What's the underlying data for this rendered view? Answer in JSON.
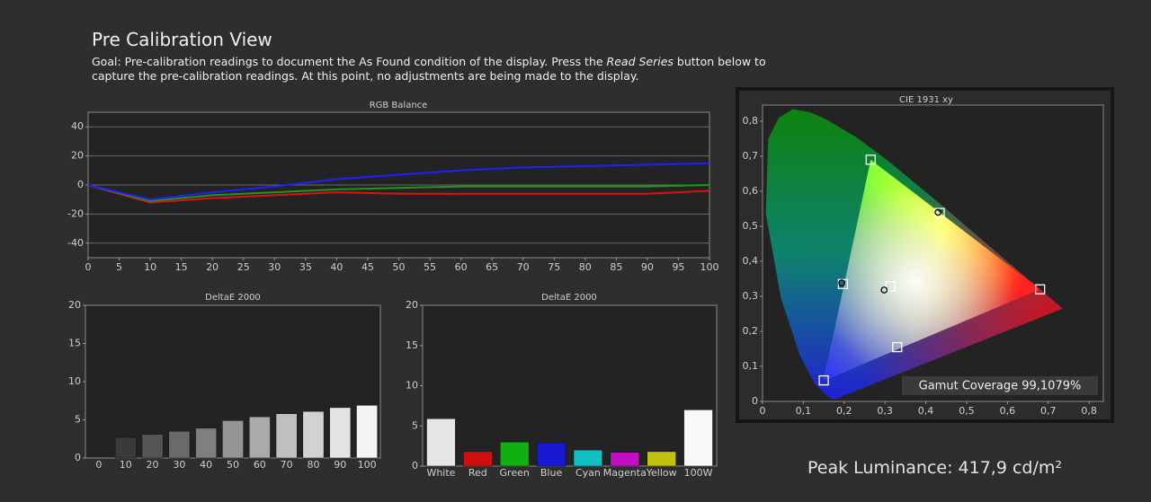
{
  "header": {
    "title": "Pre Calibration View",
    "goal_parts": [
      "Goal: Pre-calibration readings to document the As Found condition of the display. Press the ",
      "Read Series",
      " button below to capture the pre-calibration readings. At this point, no adjustments are being made to the display."
    ]
  },
  "peak_luminance": "Peak Luminance: 417,9 cd/m²",
  "chart_data": [
    {
      "type": "line",
      "title": "RGB Balance",
      "x": [
        0,
        10,
        20,
        30,
        40,
        50,
        60,
        70,
        80,
        90,
        100
      ],
      "xlim": [
        0,
        100
      ],
      "xticks": [
        0,
        5,
        10,
        15,
        20,
        25,
        30,
        35,
        40,
        45,
        50,
        55,
        60,
        65,
        70,
        75,
        80,
        85,
        90,
        95,
        100
      ],
      "ylim": [
        -50,
        50
      ],
      "yticks": [
        -40,
        -20,
        0,
        20,
        40
      ],
      "grid": true,
      "series": [
        {
          "color": "#e01010",
          "values": [
            0,
            -12,
            -9,
            -7,
            -5,
            -6,
            -6,
            -6,
            -6,
            -6,
            -4
          ]
        },
        {
          "color": "#1a9a1a",
          "values": [
            0,
            -11,
            -7,
            -5,
            -3,
            -2,
            -1,
            -1,
            -1,
            -1,
            0
          ]
        },
        {
          "color": "#2020ff",
          "values": [
            0,
            -10,
            -5,
            -1,
            4,
            7,
            10,
            12,
            13,
            14,
            15
          ]
        }
      ]
    },
    {
      "type": "bar",
      "title": "DeltaE 2000",
      "categories": [
        "0",
        "10",
        "20",
        "30",
        "40",
        "50",
        "60",
        "70",
        "80",
        "90",
        "100"
      ],
      "values": [
        null,
        2.7,
        3.1,
        3.5,
        3.9,
        4.9,
        5.4,
        5.8,
        6.1,
        6.6,
        6.9
      ],
      "colors": [
        "#000000",
        "#3a3a3a",
        "#555555",
        "#6a6a6a",
        "#7f7f7f",
        "#959595",
        "#aaaaaa",
        "#bfbfbf",
        "#d2d2d2",
        "#e4e4e4",
        "#f4f4f4"
      ],
      "ylim": [
        0,
        20
      ],
      "yticks": [
        0,
        5,
        10,
        15,
        20
      ],
      "grid": false
    },
    {
      "type": "bar",
      "title": "DeltaE 2000",
      "categories": [
        "White",
        "Red",
        "Green",
        "Blue",
        "Cyan",
        "Magenta",
        "Yellow",
        "100W"
      ],
      "values": [
        5.9,
        1.8,
        3.0,
        2.9,
        2.0,
        1.7,
        1.8,
        7.0
      ],
      "colors": [
        "#e6e6e6",
        "#d01010",
        "#10b010",
        "#1818d0",
        "#10c0c0",
        "#c010c0",
        "#c0c010",
        "#f8f8f8"
      ],
      "ylim": [
        0,
        20
      ],
      "yticks": [
        0,
        5,
        10,
        15,
        20
      ],
      "grid": false
    },
    {
      "type": "scatter",
      "title": "CIE 1931 xy",
      "xlim": [
        0,
        0.835
      ],
      "ylim": [
        0,
        0.846
      ],
      "xticks": [
        0,
        {
          "value": 0.1,
          "label": "0,1"
        },
        {
          "value": 0.2,
          "label": "0,2"
        },
        {
          "value": 0.3,
          "label": "0,3"
        },
        {
          "value": 0.4,
          "label": "0,4"
        },
        {
          "value": 0.5,
          "label": "0,5"
        },
        {
          "value": 0.6,
          "label": "0,6"
        },
        {
          "value": 0.7,
          "label": "0,7"
        },
        {
          "value": 0.8,
          "label": "0,8"
        }
      ],
      "yticks": [
        0,
        {
          "value": 0.1,
          "label": "0,1"
        },
        {
          "value": 0.2,
          "label": "0,2"
        },
        {
          "value": 0.3,
          "label": "0,3"
        },
        {
          "value": 0.4,
          "label": "0,4"
        },
        {
          "value": 0.5,
          "label": "0,5"
        },
        {
          "value": 0.6,
          "label": "0,6"
        },
        {
          "value": 0.7,
          "label": "0,7"
        },
        {
          "value": 0.8,
          "label": "0,8"
        }
      ],
      "annotation": "Gamut Coverage 99,1079%",
      "series": [
        {
          "marker": "square",
          "color": "#ffffff",
          "x": [
            0.68,
            0.265,
            0.15,
            0.197,
            0.33,
            0.434,
            0.313
          ],
          "values": [
            0.32,
            0.69,
            0.06,
            0.335,
            0.155,
            0.538,
            0.329
          ]
        },
        {
          "marker": "circle",
          "color": "#000000",
          "x": [
            0.43,
            0.298,
            0.194
          ],
          "values": [
            0.54,
            0.318,
            0.338
          ]
        }
      ]
    }
  ]
}
